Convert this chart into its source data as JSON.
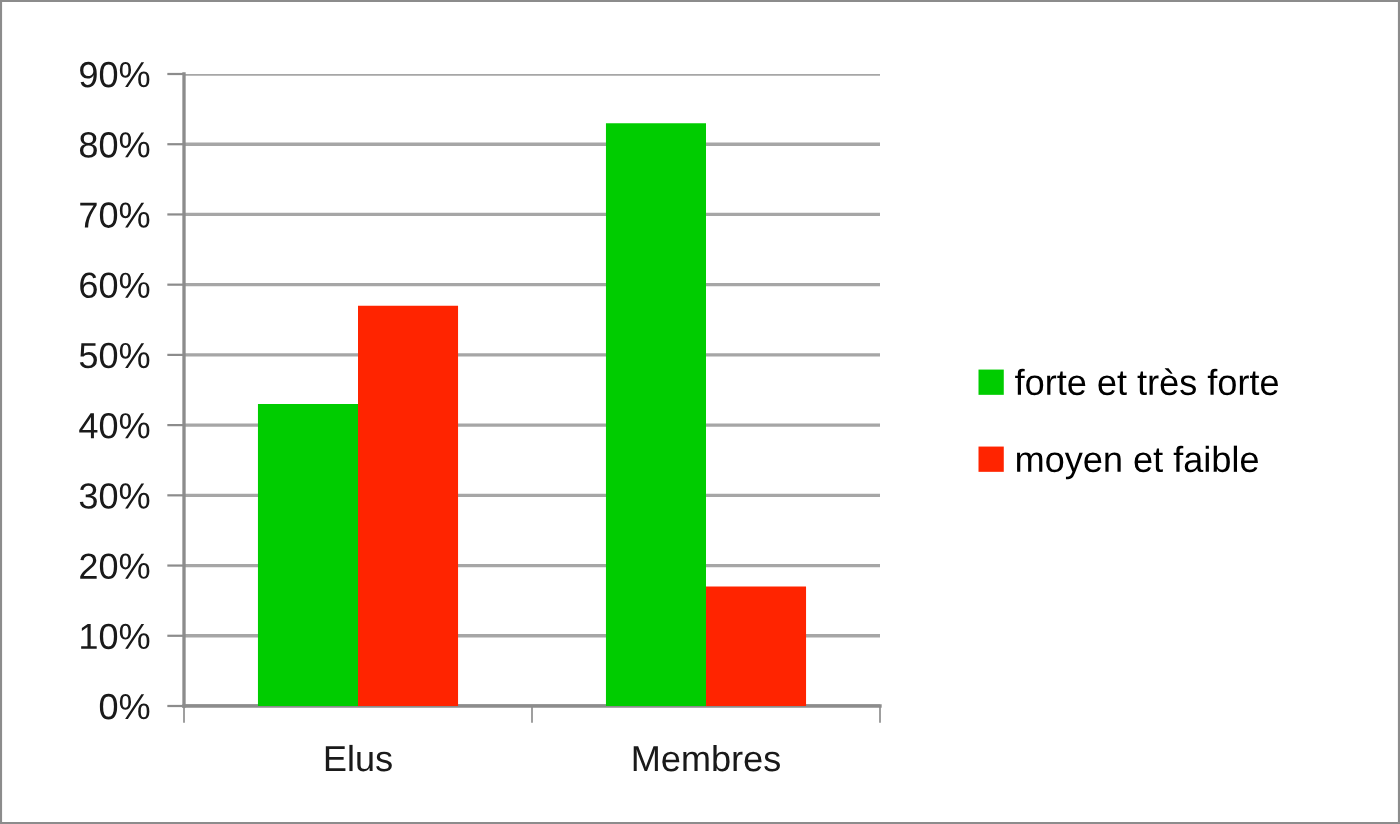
{
  "chart_data": {
    "type": "bar",
    "categories": [
      "Elus",
      "Membres"
    ],
    "series": [
      {
        "name": "forte et très forte",
        "color": "#00cc00",
        "values": [
          43,
          83
        ]
      },
      {
        "name": "moyen et faible",
        "color": "#ff2400",
        "values": [
          57,
          17
        ]
      }
    ],
    "ylim": [
      0,
      90
    ],
    "yticks": [
      {
        "value": 0,
        "label": "0%"
      },
      {
        "value": 10,
        "label": "10%"
      },
      {
        "value": 20,
        "label": "20%"
      },
      {
        "value": 30,
        "label": "30%"
      },
      {
        "value": 40,
        "label": "40%"
      },
      {
        "value": 50,
        "label": "50%"
      },
      {
        "value": 60,
        "label": "60%"
      },
      {
        "value": 70,
        "label": "70%"
      },
      {
        "value": 80,
        "label": "80%"
      },
      {
        "value": 90,
        "label": "90%"
      }
    ],
    "grid": "y",
    "legend": "right"
  }
}
